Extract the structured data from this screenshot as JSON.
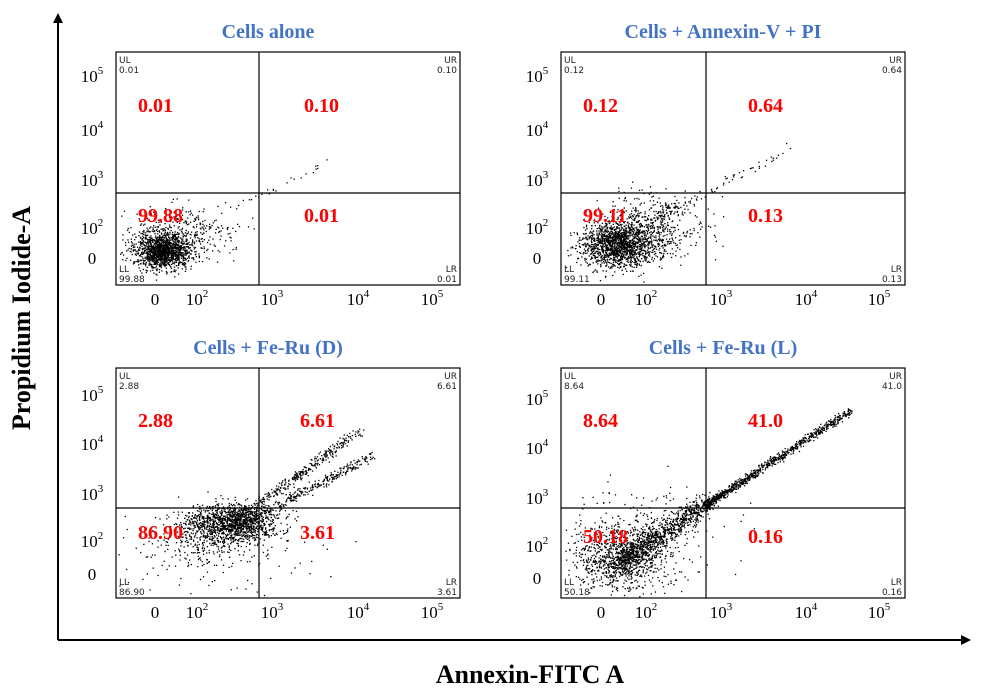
{
  "figure": {
    "y_axis_title": "Propidium Iodide-A",
    "x_axis_title": "Annexin-FITC A"
  },
  "x_tick_labels": [
    {
      "base": "0",
      "exp": ""
    },
    {
      "base": "10",
      "exp": "2"
    },
    {
      "base": "10",
      "exp": "3"
    },
    {
      "base": "10",
      "exp": "4"
    },
    {
      "base": "10",
      "exp": "5"
    }
  ],
  "y_tick_labels": [
    {
      "base": "0",
      "exp": ""
    },
    {
      "base": "10",
      "exp": "2"
    },
    {
      "base": "10",
      "exp": "3"
    },
    {
      "base": "10",
      "exp": "4"
    },
    {
      "base": "10",
      "exp": "5"
    }
  ],
  "colors": {
    "title": "#4472C4",
    "quadrant_value": "#ff0000",
    "dots": "#000000",
    "axes": "#000000"
  },
  "chart_data": [
    {
      "type": "scatter",
      "title": "Cells alone",
      "xscale": "log",
      "yscale": "log",
      "quadrants": {
        "UL": {
          "corner_label": "UL",
          "corner_value": "0.01",
          "value": "0.01"
        },
        "UR": {
          "corner_label": "UR",
          "corner_value": "0.10",
          "value": "0.10"
        },
        "LL": {
          "corner_label": "LL",
          "corner_value": "99.88",
          "value": "99.88"
        },
        "LR": {
          "corner_label": "LR",
          "corner_value": "0.01",
          "value": "0.01"
        }
      }
    },
    {
      "type": "scatter",
      "title": "Cells + Annexin-V + PI",
      "xscale": "log",
      "yscale": "log",
      "quadrants": {
        "UL": {
          "corner_label": "UL",
          "corner_value": "0.12",
          "value": "0.12"
        },
        "UR": {
          "corner_label": "UR",
          "corner_value": "0.64",
          "value": "0.64"
        },
        "LL": {
          "corner_label": "LL",
          "corner_value": "99.11",
          "value": "99.11"
        },
        "LR": {
          "corner_label": "LR",
          "corner_value": "0.13",
          "value": "0.13"
        }
      }
    },
    {
      "type": "scatter",
      "title": "Cells + Fe-Ru (D)",
      "xscale": "log",
      "yscale": "log",
      "quadrants": {
        "UL": {
          "corner_label": "UL",
          "corner_value": "2.88",
          "value": "2.88"
        },
        "UR": {
          "corner_label": "UR",
          "corner_value": "6.61",
          "value": "6.61"
        },
        "LL": {
          "corner_label": "LL",
          "corner_value": "86.90",
          "value": "86.90"
        },
        "LR": {
          "corner_label": "LR",
          "corner_value": "3.61",
          "value": "3.61"
        }
      }
    },
    {
      "type": "scatter",
      "title": "Cells + Fe-Ru (L)",
      "xscale": "log",
      "yscale": "log",
      "quadrants": {
        "UL": {
          "corner_label": "UL",
          "corner_value": "8.64",
          "value": "8.64"
        },
        "UR": {
          "corner_label": "UR",
          "corner_value": "41.0",
          "value": "41.0"
        },
        "LL": {
          "corner_label": "LL",
          "corner_value": "50.18",
          "value": "50.18"
        },
        "LR": {
          "corner_label": "LR",
          "corner_value": "0.16",
          "value": "0.16"
        }
      }
    }
  ]
}
